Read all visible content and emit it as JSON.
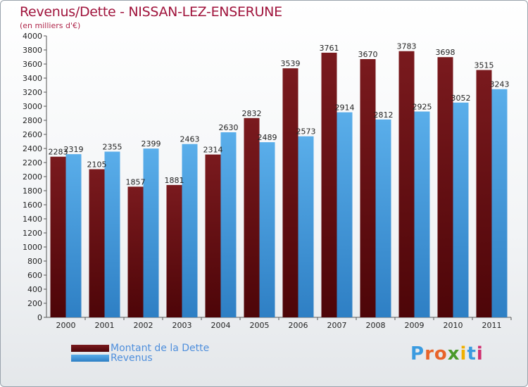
{
  "header": {
    "title": "Revenus/Dette - NISSAN-LEZ-ENSERUNE",
    "subtitle": "(en milliers d'€)"
  },
  "colors": {
    "dette": "#7a1a1e",
    "dette_dark": "#4d0508",
    "revenus": "#5aaeea",
    "revenus_dark": "#2e7fc4"
  },
  "chart_data": {
    "type": "bar",
    "title": "Revenus/Dette - NISSAN-LEZ-ENSERUNE",
    "ylabel": "(en milliers d'€)",
    "xlabel": "",
    "ylim": [
      0,
      4000
    ],
    "yticks": [
      0,
      200,
      400,
      600,
      800,
      1000,
      1200,
      1400,
      1600,
      1800,
      2000,
      2200,
      2400,
      2600,
      2800,
      3000,
      3200,
      3400,
      3600,
      3800,
      4000
    ],
    "grid": false,
    "legend_position": "bottom-left",
    "categories": [
      "2000",
      "2001",
      "2002",
      "2003",
      "2004",
      "2005",
      "2006",
      "2007",
      "2008",
      "2009",
      "2010",
      "2011"
    ],
    "series": [
      {
        "name": "Montant de la Dette",
        "values": [
          2283,
          2105,
          1857,
          1881,
          2314,
          2832,
          3539,
          3761,
          3670,
          3783,
          3698,
          3515
        ]
      },
      {
        "name": "Revenus",
        "values": [
          2319,
          2355,
          2399,
          2463,
          2630,
          2489,
          2573,
          2914,
          2812,
          2925,
          3052,
          3243
        ]
      }
    ]
  },
  "legend": {
    "items": [
      {
        "label": "Montant de la Dette"
      },
      {
        "label": "Revenus"
      }
    ]
  },
  "logo": {
    "letters": [
      "P",
      "r",
      "o",
      "x",
      "i",
      "t",
      "i"
    ],
    "colors": [
      "#3a9be0",
      "#e8642a",
      "#e8642a",
      "#4a9a2a",
      "#f0b000",
      "#3a9be0",
      "#d03070"
    ]
  }
}
